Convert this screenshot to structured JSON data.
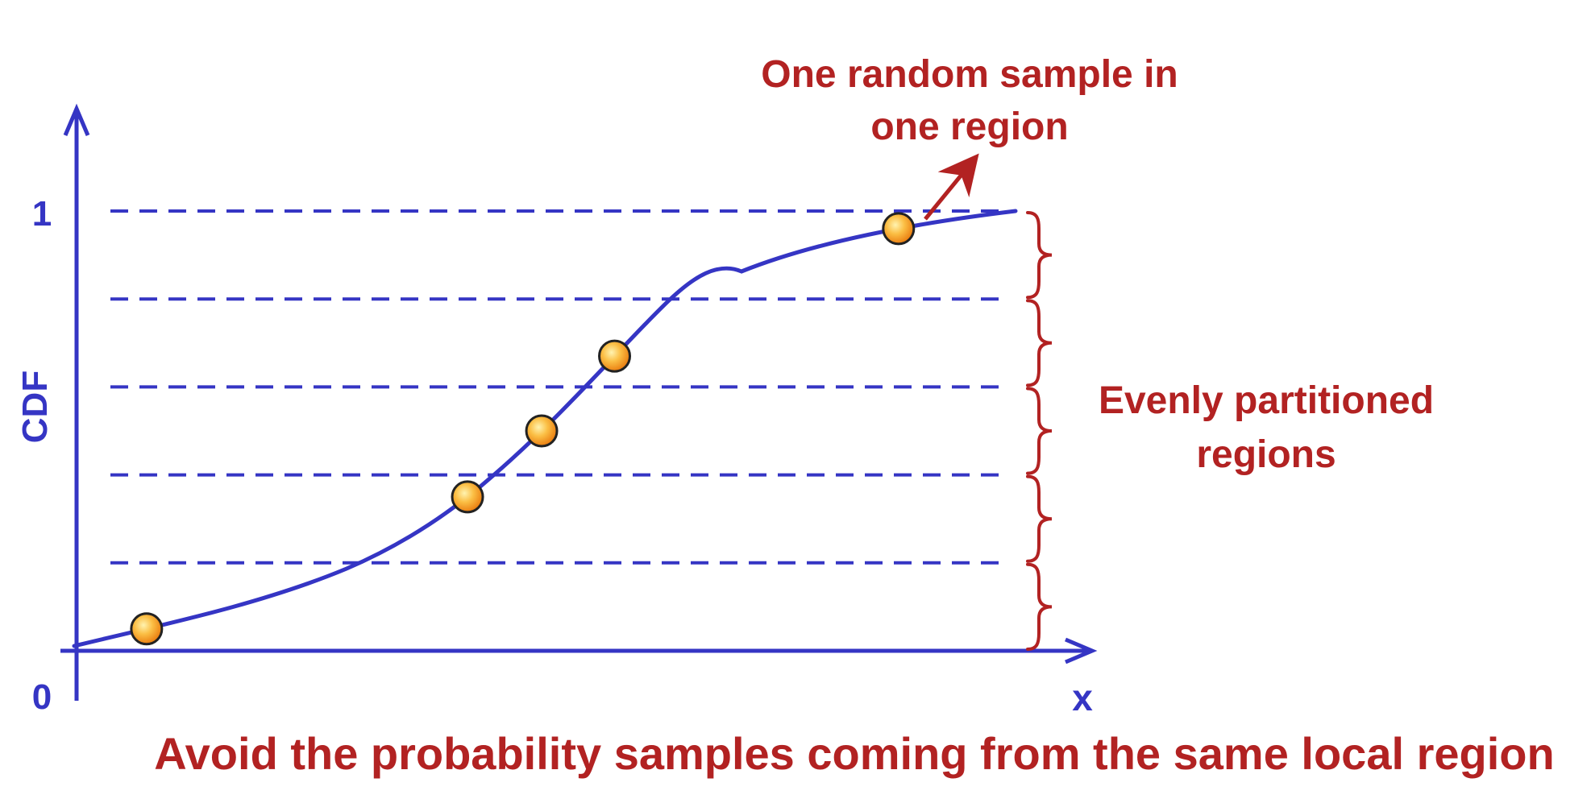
{
  "axes": {
    "y_label": "CDF",
    "x_label": "x",
    "y_tick_top": "1",
    "origin_label": "0"
  },
  "annotations": {
    "sample_note_line1": "One random sample in",
    "sample_note_line2": "one region",
    "regions_note_line1": "Evenly partitioned",
    "regions_note_line2": "regions"
  },
  "caption": "Avoid the probability samples coming from the same local region",
  "colors": {
    "axis": "#3535c4",
    "annotation": "#b22222",
    "sample_fill": "#f59a1e",
    "sample_highlight": "#fff3b0"
  },
  "regions": {
    "count": 5
  },
  "samples_cdf": [
    0.05,
    0.35,
    0.5,
    0.67,
    0.96
  ]
}
